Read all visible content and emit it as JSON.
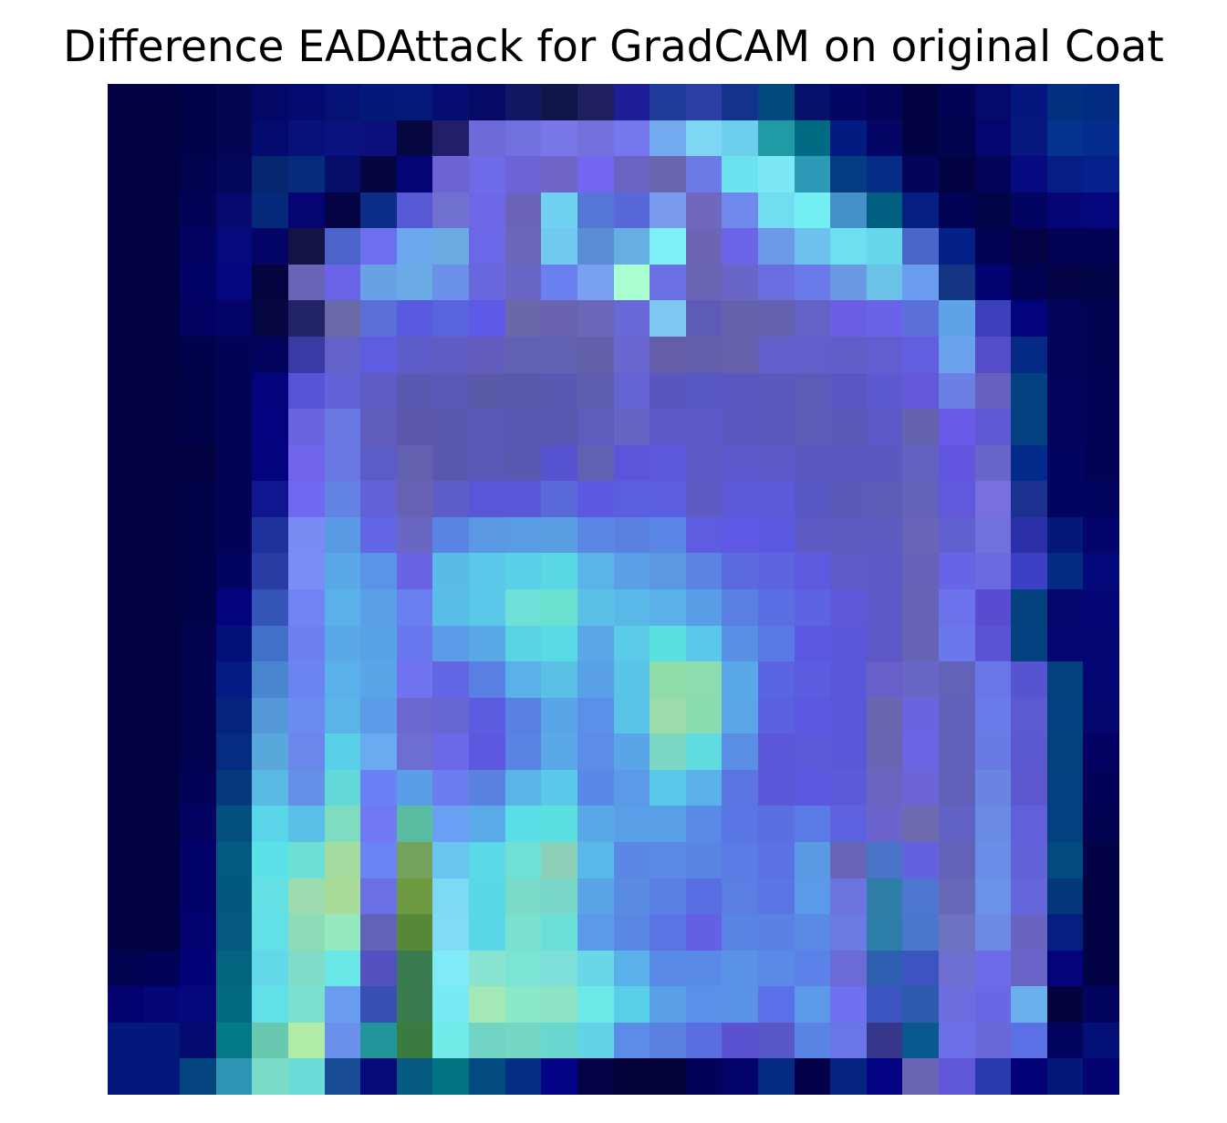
{
  "chart_data": {
    "type": "heatmap",
    "title": "Difference EADAttack for GradCAM on original Coat",
    "xlabel": "",
    "ylabel": "",
    "axes_visible": false,
    "grid": false,
    "rows": 28,
    "cols": 28,
    "colormap": "jet-like overlay on dark navy background (low = dark navy, mid = purple/blue, high = cyan/teal/green)",
    "row_colors": [
      [
        "#020243",
        "#020243",
        "#02024a",
        "#040654",
        "#030866",
        "#030c6e",
        "#041276",
        "#03197a",
        "#031a7a",
        "#050d70",
        "#040a66",
        "#121763",
        "#101548",
        "#1f1f5f",
        "#1e1e96",
        "#1f3c9a",
        "#2c3fa6",
        "#13328a",
        "#004a7e",
        "#03106c",
        "#050565",
        "#030358",
        "#020240",
        "#030355",
        "#040a6a",
        "#03177e",
        "#023080",
        "#022c82"
      ],
      [
        "#020243",
        "#020243",
        "#02024a",
        "#040654",
        "#030a6e",
        "#06127a",
        "#0a1280",
        "#0c107e",
        "#060640",
        "#211f68",
        "#6e6ad8",
        "#7370e0",
        "#7a78e8",
        "#7470dc",
        "#7478ec",
        "#74aaf0",
        "#7cd6f4",
        "#6cd0ec",
        "#209aa4",
        "#006a82",
        "#031b80",
        "#050566",
        "#030344",
        "#030350",
        "#050570",
        "#06177e",
        "#053390",
        "#052d90"
      ],
      [
        "#020243",
        "#020243",
        "#020250",
        "#04065a",
        "#05256e",
        "#062a7c",
        "#050e68",
        "#040440",
        "#040476",
        "#6c64d4",
        "#6e6ae8",
        "#6c64d8",
        "#7066c8",
        "#7466f0",
        "#6c64c4",
        "#6a66b0",
        "#6e7ae8",
        "#6ce2ee",
        "#7ce8f6",
        "#2c9ab6",
        "#053b80",
        "#052c84",
        "#03045a",
        "#030344",
        "#03035a",
        "#060a80",
        "#061d86",
        "#06208e"
      ],
      [
        "#020243",
        "#020243",
        "#020256",
        "#060a6e",
        "#05297a",
        "#040572",
        "#040344",
        "#0a2e8a",
        "#5658d4",
        "#7070d0",
        "#6e68e8",
        "#6c64b8",
        "#70d2f0",
        "#5476d4",
        "#5868d8",
        "#7a9af0",
        "#7068bc",
        "#6e88ec",
        "#70def0",
        "#74f0f4",
        "#4690c8",
        "#005e80",
        "#041f80",
        "#030355",
        "#030348",
        "#030362",
        "#040678",
        "#04067e"
      ],
      [
        "#020243",
        "#020243",
        "#030262",
        "#040a7e",
        "#040567",
        "#141444",
        "#4a64cc",
        "#6c70f0",
        "#6ca6ec",
        "#6caae4",
        "#6c66e8",
        "#6c66b8",
        "#70caf0",
        "#5a8ed4",
        "#66aee4",
        "#7ef0f8",
        "#6c64b4",
        "#6c64e8",
        "#6c9ae8",
        "#6cc2ec",
        "#6ce0f0",
        "#66d6ec",
        "#4a66c8",
        "#041f86",
        "#030355",
        "#030346",
        "#030354",
        "#030356"
      ],
      [
        "#020243",
        "#020243",
        "#030266",
        "#04077e",
        "#040440",
        "#6a64b8",
        "#6c64e8",
        "#6aa0e4",
        "#6aaae4",
        "#6a90e8",
        "#6a66dc",
        "#6a66c8",
        "#6a80f0",
        "#7aa0f4",
        "#aaffd0",
        "#6a70e4",
        "#6a64b4",
        "#6a66c8",
        "#6a6ee0",
        "#6a7ae8",
        "#6a9ae4",
        "#6ac2e8",
        "#6a9cf0",
        "#143484",
        "#030372",
        "#030354",
        "#030346",
        "#030348"
      ],
      [
        "#020243",
        "#020243",
        "#030262",
        "#040468",
        "#060642",
        "#222266",
        "#6a6aa8",
        "#5a70d8",
        "#5a5ae0",
        "#5a64dc",
        "#5e5ae8",
        "#6a68a8",
        "#6862b0",
        "#6a66b8",
        "#6868d8",
        "#80c8f4",
        "#5e5ab8",
        "#6462aa",
        "#6462b0",
        "#6462c4",
        "#6a5ee4",
        "#6a62e8",
        "#5c70dc",
        "#5ea2e8",
        "#3c40bc",
        "#03047c",
        "#03035a",
        "#030352"
      ],
      [
        "#020243",
        "#020243",
        "#02024c",
        "#030356",
        "#03035e",
        "#3a3aa4",
        "#6462c8",
        "#5e5ce0",
        "#5e5cc8",
        "#605cc4",
        "#625cbc",
        "#6260b0",
        "#6260b0",
        "#6260aa",
        "#6a68d0",
        "#645ea8",
        "#625eac",
        "#6460aa",
        "#625eca",
        "#625ecc",
        "#625ec8",
        "#625ed0",
        "#625ee0",
        "#6aa0ec",
        "#544cc8",
        "#042a86",
        "#03035a",
        "#030352"
      ],
      [
        "#020243",
        "#020243",
        "#020248",
        "#030356",
        "#03037c",
        "#5854d8",
        "#6462d8",
        "#5e5cc4",
        "#5a58b0",
        "#5a58b8",
        "#5a5aa8",
        "#5a58a8",
        "#5a58b0",
        "#5e5cac",
        "#6664d4",
        "#5a56c0",
        "#5a58c4",
        "#5a58c0",
        "#5c58bc",
        "#5e5ab8",
        "#5a56c4",
        "#5c58d0",
        "#6258d8",
        "#6a80e4",
        "#6660c0",
        "#034080",
        "#03035c",
        "#030356"
      ],
      [
        "#020243",
        "#020243",
        "#020248",
        "#030356",
        "#030380",
        "#6a64e0",
        "#6a78e4",
        "#605cbc",
        "#5c58ac",
        "#5a58ac",
        "#5c58b8",
        "#5a58b4",
        "#5a58b0",
        "#5e5cbc",
        "#6664c4",
        "#5c58c8",
        "#5c58c8",
        "#5a58c0",
        "#5c58bc",
        "#5e5ab8",
        "#5c58b8",
        "#5c58c8",
        "#6462b0",
        "#6a5ae8",
        "#6058d4",
        "#034080",
        "#03035e",
        "#030356"
      ],
      [
        "#020243",
        "#020243",
        "#020240",
        "#030356",
        "#03037e",
        "#7064ec",
        "#6a78e4",
        "#5c5cc8",
        "#6460b0",
        "#5a58ac",
        "#5c58b8",
        "#5a58b0",
        "#5652d0",
        "#6260b0",
        "#5e54dc",
        "#5e58dc",
        "#5c58c4",
        "#5c58cc",
        "#5c58c8",
        "#5a58c0",
        "#5a58c0",
        "#5c58c0",
        "#6462c0",
        "#6256e0",
        "#6866c8",
        "#022a8a",
        "#030362",
        "#030356"
      ],
      [
        "#020243",
        "#020243",
        "#020248",
        "#030356",
        "#101690",
        "#7068f0",
        "#6282e4",
        "#6460d8",
        "#6862b4",
        "#5e5cc8",
        "#5a56d8",
        "#5a58d8",
        "#5a6ad8",
        "#5c58e0",
        "#5a5ee0",
        "#5c60e0",
        "#5e5ac4",
        "#5c58d8",
        "#5c5ad8",
        "#5a58c4",
        "#5c5ab8",
        "#5e5cb8",
        "#6462b8",
        "#6258dc",
        "#7870e0",
        "#1c3090",
        "#030362",
        "#030360"
      ],
      [
        "#020243",
        "#020243",
        "#020248",
        "#030356",
        "#1e329e",
        "#7a8cf4",
        "#5a9ae4",
        "#6266e4",
        "#6a66c4",
        "#5a84e4",
        "#5a98e4",
        "#5a9ce4",
        "#5a9ee4",
        "#5a88e4",
        "#5a80e0",
        "#5a86e8",
        "#5e5ce0",
        "#5e58e4",
        "#5a58e0",
        "#5e5ac4",
        "#5e5ac0",
        "#5e5ac0",
        "#6864b8",
        "#6060d0",
        "#7270dc",
        "#2c30a8",
        "#031878",
        "#03056c"
      ],
      [
        "#020243",
        "#020243",
        "#020248",
        "#030362",
        "#283ca4",
        "#7a8ef8",
        "#5aa8e8",
        "#5a94e8",
        "#6a64e4",
        "#5abae8",
        "#5ac8e8",
        "#5ad0e8",
        "#5ad8e4",
        "#5ab4e8",
        "#5aa0e8",
        "#5a98e4",
        "#5c82e4",
        "#5c6ae0",
        "#5c64e0",
        "#5e5ae0",
        "#5e5ac8",
        "#5e58c8",
        "#6662b8",
        "#6864e8",
        "#6c6ae0",
        "#3c40c4",
        "#042a82",
        "#03087a"
      ],
      [
        "#020243",
        "#020243",
        "#020248",
        "#03037e",
        "#3454b8",
        "#7284f4",
        "#5ab0e8",
        "#5aa0e8",
        "#6a80f0",
        "#5abce8",
        "#5ac8e8",
        "#6ee0d8",
        "#6ae0d0",
        "#5ac0e8",
        "#5ab8e8",
        "#5ab0e8",
        "#5a9ee8",
        "#5a80e4",
        "#5a6ee4",
        "#5c64e4",
        "#5e58d8",
        "#5e58c8",
        "#6662b4",
        "#6c72ec",
        "#5a4cd0",
        "#03407e",
        "#03066a",
        "#030674"
      ],
      [
        "#020243",
        "#020243",
        "#030250",
        "#04107a",
        "#4070c8",
        "#6c80f0",
        "#5aa8e8",
        "#5aa2e8",
        "#6a78f0",
        "#5a9ce8",
        "#5aa8e8",
        "#5ad4e4",
        "#5adae4",
        "#5aa6e8",
        "#5acce8",
        "#5ae0e0",
        "#5ac8e8",
        "#5a90e4",
        "#5a78e4",
        "#5a58e0",
        "#5a58d8",
        "#5c58c8",
        "#6662b4",
        "#6a78ec",
        "#5a54d4",
        "#034080",
        "#030672",
        "#030670"
      ],
      [
        "#020243",
        "#020243",
        "#030250",
        "#041a84",
        "#4a86d0",
        "#6a84f0",
        "#5ab0e8",
        "#5aa4e8",
        "#7074f0",
        "#6066e4",
        "#5a80e4",
        "#5ab0e8",
        "#5ac0e4",
        "#5aa0e8",
        "#5ac4e8",
        "#90dca8",
        "#8cdcb0",
        "#5aa8e8",
        "#5a64e0",
        "#5c5ce0",
        "#5a58d8",
        "#6860c8",
        "#6a66c8",
        "#6262b8",
        "#6a76e8",
        "#5654d0",
        "#03407e",
        "#030672"
      ],
      [
        "#020243",
        "#020243",
        "#030250",
        "#04247e",
        "#5498d8",
        "#6a8cf0",
        "#5ab4e8",
        "#5a9ce8",
        "#6c68d0",
        "#6866d4",
        "#5c5ce0",
        "#5a80e4",
        "#5aa4e8",
        "#5a90e8",
        "#5ac4e8",
        "#9cdcaa",
        "#88dcb0",
        "#5aa6e8",
        "#5a60e0",
        "#5a58e0",
        "#5a58d8",
        "#6a66b0",
        "#6a64e0",
        "#6260b8",
        "#6a7ae8",
        "#5c5ad0",
        "#034080",
        "#03066c"
      ],
      [
        "#020243",
        "#020243",
        "#030250",
        "#052c82",
        "#58a8dc",
        "#6a88ec",
        "#5ad0e8",
        "#6aaaf0",
        "#6e6ed0",
        "#6c68e8",
        "#5c58e0",
        "#5a84e4",
        "#5aa8e8",
        "#5a8ce8",
        "#5aa4e8",
        "#7ad8c4",
        "#60dce0",
        "#5a8ee4",
        "#5a58d8",
        "#5c5ad8",
        "#5a58d8",
        "#6a66b4",
        "#6c64e4",
        "#6260b8",
        "#6a7ae4",
        "#5c58d0",
        "#03407c",
        "#030262"
      ],
      [
        "#020243",
        "#020243",
        "#030256",
        "#04397e",
        "#5ab8e4",
        "#6490e8",
        "#62d8d8",
        "#6a80f4",
        "#5a9ee8",
        "#6a7ef0",
        "#5a80e0",
        "#5ab4e8",
        "#5ac8e8",
        "#5a88e8",
        "#5a9ae8",
        "#5ac8e8",
        "#5ab0e8",
        "#5a74e0",
        "#5a58d8",
        "#5e58e0",
        "#5c5ad8",
        "#6a66c0",
        "#6c64d8",
        "#6260b8",
        "#6a84e4",
        "#5e58d0",
        "#034080",
        "#030258"
      ],
      [
        "#020243",
        "#020243",
        "#030260",
        "#03507e",
        "#5ad4e8",
        "#5ac0e8",
        "#80dcc0",
        "#7078f4",
        "#5abca0",
        "#6aa0f4",
        "#5aaae8",
        "#5adee8",
        "#5ae0e0",
        "#5aa8e8",
        "#5aa0e8",
        "#5aa0e8",
        "#5a8ae8",
        "#5a76e4",
        "#5a70e0",
        "#5a7ae4",
        "#5c62e0",
        "#6a64cc",
        "#6e6ab0",
        "#6262c4",
        "#6a8ae4",
        "#6060d8",
        "#034080",
        "#030250"
      ],
      [
        "#020243",
        "#020243",
        "#03026a",
        "#035a80",
        "#5ae2e8",
        "#6ce0d4",
        "#a4dca0",
        "#6a84f4",
        "#74a25c",
        "#6ac4f0",
        "#5adae8",
        "#6ee0d4",
        "#8cd0b8",
        "#5ab8e8",
        "#5a88e4",
        "#5a8ae4",
        "#5a84e4",
        "#5a7ce4",
        "#5a72e4",
        "#5a9ae4",
        "#6864b8",
        "#4a74c8",
        "#6460e0",
        "#6462b8",
        "#6a8ee8",
        "#6262d8",
        "#034a80",
        "#030246"
      ],
      [
        "#020243",
        "#020243",
        "#03026a",
        "#03587e",
        "#62e0e4",
        "#9cdcb0",
        "#a8dc98",
        "#6a70e4",
        "#6e9a42",
        "#7cdaf4",
        "#5ad8e8",
        "#7adcc8",
        "#7ad8c8",
        "#5aa4e8",
        "#5a8ce4",
        "#5a80e4",
        "#5a6ee4",
        "#5a7ee4",
        "#5a76e4",
        "#5a9ae8",
        "#6c74e0",
        "#2e7ea8",
        "#4e78d0",
        "#6868b8",
        "#6a92e8",
        "#6666dc",
        "#04367a",
        "#030244"
      ],
      [
        "#020243",
        "#020243",
        "#030270",
        "#035a7e",
        "#62e0e8",
        "#8cdcb8",
        "#96e8c0",
        "#6262b8",
        "#568838",
        "#80daf8",
        "#5ad8e8",
        "#7ae0d0",
        "#6ae0d8",
        "#5a9ae8",
        "#5a86e4",
        "#5a74e4",
        "#6260e4",
        "#5a84e4",
        "#5a82e4",
        "#5a8ae4",
        "#6c7ae4",
        "#2c7ea8",
        "#4a78cc",
        "#6c72c0",
        "#6a8ae4",
        "#6864c0",
        "#041e82",
        "#030244"
      ],
      [
        "#020250",
        "#020256",
        "#030276",
        "#036480",
        "#62d8e8",
        "#80dcc8",
        "#6ae8e8",
        "#5450c0",
        "#3a7c50",
        "#80eaf8",
        "#88e4d0",
        "#7ce4d4",
        "#7ce0d8",
        "#68d8e8",
        "#5ab0e8",
        "#5a8ae8",
        "#5a8ae8",
        "#5a92e8",
        "#5a8ae8",
        "#5a82e8",
        "#6c6ad4",
        "#2e5eb0",
        "#3c54c0",
        "#6e6ed0",
        "#6c6ce8",
        "#6a64c8",
        "#03037a",
        "#030244"
      ],
      [
        "#030270",
        "#040678",
        "#05087a",
        "#036a82",
        "#62e0e8",
        "#7ae0d0",
        "#6a9cf0",
        "#3850b4",
        "#3a7c4e",
        "#78eaf4",
        "#a4e8b8",
        "#8ae8c8",
        "#8ce4c4",
        "#6ce8e8",
        "#5ad0e8",
        "#5aa0e8",
        "#5a90e8",
        "#5a92e8",
        "#5a70e8",
        "#5a9ae8",
        "#6e70f0",
        "#3a54c0",
        "#2c5aac",
        "#6c6ee0",
        "#6a66e4",
        "#6ab0ec",
        "#030340",
        "#030360"
      ],
      [
        "#03187a",
        "#04187c",
        "#030a6e",
        "#037a86",
        "#68c8b0",
        "#b0eca8",
        "#6a90ec",
        "#20969a",
        "#3a7c40",
        "#72eae8",
        "#72d4c4",
        "#76d8c4",
        "#6ad8d0",
        "#62d4e8",
        "#5a8ce8",
        "#5a80e0",
        "#5a70e0",
        "#5a52d0",
        "#5a58c8",
        "#5a84e4",
        "#6a76e8",
        "#36368a",
        "#0a5890",
        "#6c70e8",
        "#6a68d8",
        "#5a70e4",
        "#030360",
        "#031078"
      ],
      [
        "#03187a",
        "#04187c",
        "#04447e",
        "#2e94b4",
        "#7adcc8",
        "#6cdcd8",
        "#184c94",
        "#050a78",
        "#045a80",
        "#007480",
        "#034a80",
        "#032e84",
        "#030386",
        "#030346",
        "#030238",
        "#030338",
        "#030258",
        "#03036a",
        "#032a80",
        "#030248",
        "#052482",
        "#030384",
        "#6a64b4",
        "#6058d8",
        "#2c3ab0",
        "#030378",
        "#031878",
        "#030372"
      ]
    ]
  }
}
